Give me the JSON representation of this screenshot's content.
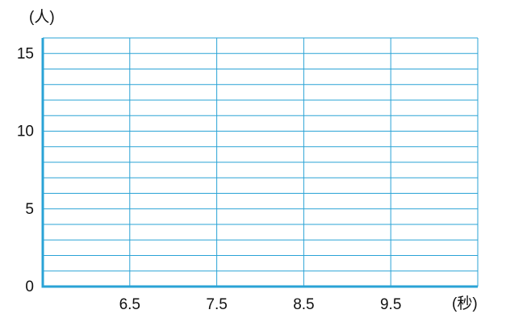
{
  "chart_data": {
    "type": "histogram",
    "y_label": "(人)",
    "x_label": "(秒)",
    "xlim": [
      5.5,
      10.5
    ],
    "xticks": [
      6.5,
      7.5,
      8.5,
      9.5
    ],
    "ylim": [
      0,
      16
    ],
    "yticks": [
      0,
      5,
      10,
      15
    ],
    "yminorticks": [
      1,
      2,
      3,
      4,
      6,
      7,
      8,
      9,
      11,
      12,
      13,
      14,
      16
    ],
    "grid": true,
    "color": "#2aa3d6"
  }
}
